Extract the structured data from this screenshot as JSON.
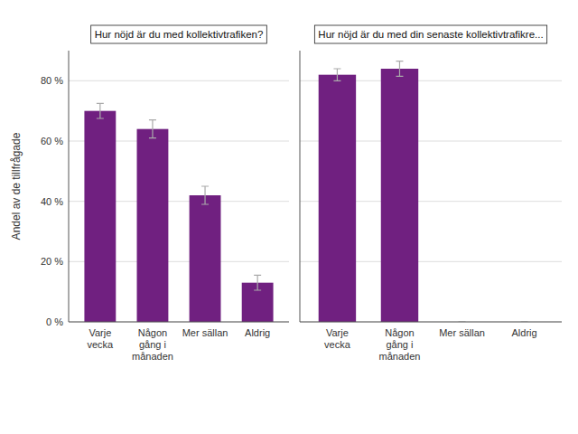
{
  "chart_data": [
    {
      "type": "bar",
      "title": "Hur nöjd är du med kollektivtrafiken?",
      "ylabel": "Andel av de tillfrågade",
      "categories": [
        "Varje\nvecka",
        "Någon\ngång i\nmånaden",
        "Mer sällan",
        "Aldrig"
      ],
      "values": [
        70,
        64,
        42,
        13
      ],
      "errors": [
        2.5,
        3.0,
        3.0,
        2.5
      ],
      "color": "#702080",
      "ylim": [
        0,
        90
      ],
      "yticks": [
        {
          "value": 0,
          "label": "0 %"
        },
        {
          "value": 20,
          "label": "20 %"
        },
        {
          "value": 40,
          "label": "40 %"
        },
        {
          "value": 60,
          "label": "60 %"
        },
        {
          "value": 80,
          "label": "80 %"
        }
      ],
      "grid": true
    },
    {
      "type": "bar",
      "title": "Hur nöjd är du med din senaste kollektivtrafikre...",
      "categories": [
        "Varje\nvecka",
        "Någon\ngång i\nmånaden",
        "Mer sällan",
        "Aldrig"
      ],
      "values": [
        82,
        84,
        0,
        0
      ],
      "errors": [
        2.0,
        2.5,
        0,
        0
      ],
      "color": "#702080",
      "ylim": [
        0,
        90
      ],
      "yticks": [
        0,
        20,
        40,
        60,
        80
      ],
      "grid": true,
      "tick_labels": "x"
    }
  ]
}
